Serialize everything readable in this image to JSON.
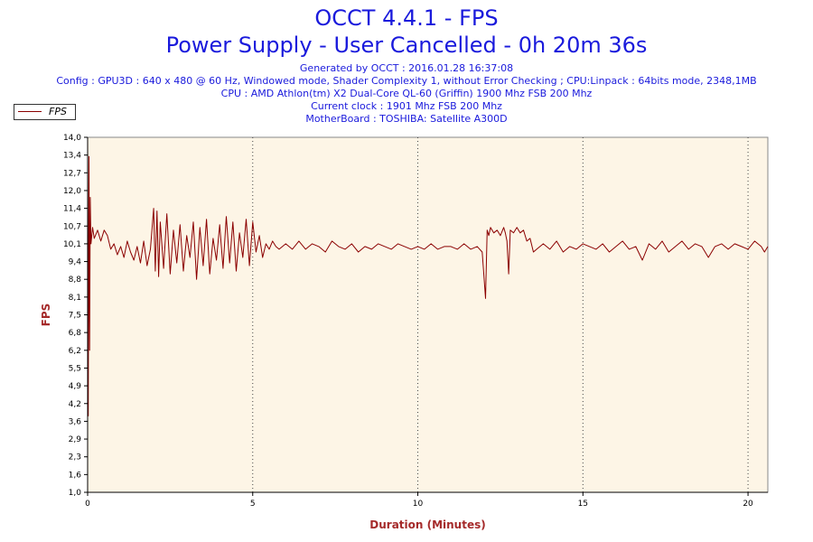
{
  "header": {
    "title": "OCCT 4.4.1 - FPS",
    "subtitle": "Power Supply - User Cancelled - 0h 20m 36s",
    "info_lines": [
      "Generated by OCCT : 2016.01.28 16:37:08",
      "Config : GPU3D : 640 x 480 @ 60 Hz, Windowed mode, Shader Complexity 1, without Error Checking ; CPU:Linpack : 64bits mode, 2348,1MB",
      "CPU : AMD Athlon(tm) X2 Dual-Core QL-60 (Griffin) 1900 Mhz FSB 200 Mhz",
      "Current clock : 1901 Mhz FSB 200 Mhz",
      "MotherBoard : TOSHIBA: Satellite A300D"
    ]
  },
  "colors": {
    "plot_background": "#fdf5e6",
    "series_line": "#8b0000",
    "title_text": "#1a1adc",
    "axis_title_text": "#a52a2a"
  },
  "chart_data": {
    "type": "line",
    "title": "OCCT 4.4.1 - FPS",
    "xlabel": "Duration (Minutes)",
    "ylabel": "FPS",
    "xlim": [
      0,
      20.6
    ],
    "ylim": [
      1.0,
      14.0
    ],
    "x_ticks": [
      "0",
      "5",
      "10",
      "15",
      "20"
    ],
    "x_tick_values": [
      0,
      5,
      10,
      15,
      20
    ],
    "y_ticks": [
      "1,0",
      "1,6",
      "2,3",
      "2,9",
      "3,6",
      "4,2",
      "4,9",
      "5,5",
      "6,2",
      "6,8",
      "7,5",
      "8,1",
      "8,8",
      "9,4",
      "10,1",
      "10,7",
      "11,4",
      "12,0",
      "12,7",
      "13,4",
      "14,0"
    ],
    "y_tick_values": [
      1.0,
      1.65,
      2.3,
      2.95,
      3.6,
      4.25,
      4.9,
      5.55,
      6.2,
      6.85,
      7.5,
      8.15,
      8.8,
      9.45,
      10.1,
      10.75,
      11.4,
      12.05,
      12.7,
      13.35,
      14.0
    ],
    "grid": "vertical-dotted",
    "legend": "top-left",
    "series": [
      {
        "name": "FPS",
        "x": [
          0.0,
          0.02,
          0.04,
          0.06,
          0.08,
          0.1,
          0.15,
          0.2,
          0.3,
          0.4,
          0.5,
          0.6,
          0.7,
          0.8,
          0.9,
          1.0,
          1.1,
          1.2,
          1.3,
          1.4,
          1.5,
          1.6,
          1.7,
          1.8,
          1.9,
          2.0,
          2.05,
          2.1,
          2.15,
          2.2,
          2.3,
          2.4,
          2.5,
          2.6,
          2.7,
          2.8,
          2.9,
          3.0,
          3.1,
          3.2,
          3.3,
          3.4,
          3.5,
          3.6,
          3.7,
          3.8,
          3.9,
          4.0,
          4.1,
          4.2,
          4.3,
          4.4,
          4.5,
          4.6,
          4.7,
          4.8,
          4.9,
          5.0,
          5.1,
          5.2,
          5.3,
          5.4,
          5.5,
          5.6,
          5.7,
          5.8,
          6.0,
          6.2,
          6.4,
          6.6,
          6.8,
          7.0,
          7.2,
          7.4,
          7.6,
          7.8,
          8.0,
          8.2,
          8.4,
          8.6,
          8.8,
          9.0,
          9.2,
          9.4,
          9.6,
          9.8,
          10.0,
          10.2,
          10.4,
          10.6,
          10.8,
          11.0,
          11.2,
          11.4,
          11.6,
          11.8,
          11.95,
          12.05,
          12.1,
          12.15,
          12.2,
          12.3,
          12.4,
          12.5,
          12.6,
          12.65,
          12.7,
          12.75,
          12.8,
          12.9,
          13.0,
          13.1,
          13.2,
          13.3,
          13.4,
          13.5,
          13.6,
          13.8,
          14.0,
          14.2,
          14.4,
          14.6,
          14.8,
          15.0,
          15.2,
          15.4,
          15.6,
          15.8,
          16.0,
          16.2,
          16.4,
          16.6,
          16.8,
          17.0,
          17.2,
          17.4,
          17.6,
          17.8,
          18.0,
          18.2,
          18.4,
          18.6,
          18.8,
          19.0,
          19.2,
          19.4,
          19.6,
          19.8,
          20.0,
          20.2,
          20.4,
          20.5,
          20.6
        ],
        "values": [
          14.0,
          3.8,
          13.3,
          6.2,
          11.8,
          10.1,
          10.7,
          10.3,
          10.6,
          10.2,
          10.6,
          10.4,
          9.9,
          10.1,
          9.7,
          10.0,
          9.6,
          10.2,
          9.8,
          9.5,
          10.0,
          9.4,
          10.2,
          9.3,
          9.9,
          11.4,
          9.1,
          11.3,
          8.9,
          10.9,
          9.2,
          11.2,
          9.0,
          10.6,
          9.4,
          10.8,
          9.1,
          10.4,
          9.6,
          10.9,
          8.8,
          10.7,
          9.3,
          11.0,
          9.0,
          10.3,
          9.5,
          10.8,
          9.2,
          11.1,
          9.4,
          10.9,
          9.1,
          10.5,
          9.6,
          11.0,
          9.3,
          10.9,
          9.8,
          10.4,
          9.6,
          10.1,
          9.9,
          10.2,
          10.0,
          9.9,
          10.1,
          9.9,
          10.2,
          9.9,
          10.1,
          10.0,
          9.8,
          10.2,
          10.0,
          9.9,
          10.1,
          9.8,
          10.0,
          9.9,
          10.1,
          10.0,
          9.9,
          10.1,
          10.0,
          9.9,
          10.0,
          9.9,
          10.1,
          9.9,
          10.0,
          10.0,
          9.9,
          10.1,
          9.9,
          10.0,
          9.8,
          8.1,
          10.6,
          10.4,
          10.7,
          10.5,
          10.6,
          10.4,
          10.7,
          10.5,
          10.2,
          9.0,
          10.6,
          10.5,
          10.7,
          10.5,
          10.6,
          10.2,
          10.3,
          9.8,
          9.9,
          10.1,
          9.9,
          10.2,
          9.8,
          10.0,
          9.9,
          10.1,
          10.0,
          9.9,
          10.1,
          9.8,
          10.0,
          10.2,
          9.9,
          10.0,
          9.5,
          10.1,
          9.9,
          10.2,
          9.8,
          10.0,
          10.2,
          9.9,
          10.1,
          10.0,
          9.6,
          10.0,
          10.1,
          9.9,
          10.1,
          10.0,
          9.9,
          10.2,
          10.0,
          9.8,
          10.0
        ]
      }
    ]
  }
}
